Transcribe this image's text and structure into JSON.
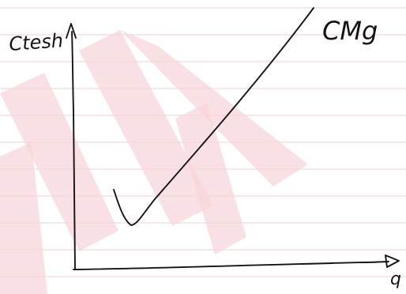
{
  "axis_labels": {
    "y": "Ctesh",
    "x": "q"
  },
  "curve_label": "CMg",
  "colors": {
    "ink": "#141414",
    "paper": "#ffffff",
    "rule_lines": "#f6dde0",
    "watermark": "#f7d6db"
  }
}
